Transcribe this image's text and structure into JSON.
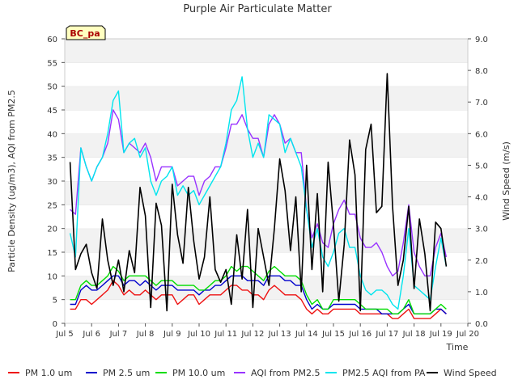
{
  "chart_data": {
    "type": "line",
    "title": "Purple Air Particulate Matter",
    "badge": "BC_pa",
    "xlabel": "Time",
    "ylabel_left": "Particle Density (ug/m3), AQI from PM2.5",
    "ylabel_right": "Wind Speed (m/s)",
    "x_ticks": [
      "Jul 5",
      "Jul 6",
      "Jul 7",
      "Jul 8",
      "Jul 9",
      "Jul 10",
      "Jul 11",
      "Jul 12",
      "Jul 13",
      "Jul 14",
      "Jul 15",
      "Jul 16",
      "Jul 17",
      "Jul 18",
      "Jul 19",
      "Jul 20"
    ],
    "x_range_days": [
      5,
      20
    ],
    "y_left_ticks": [
      "0",
      "5",
      "10",
      "15",
      "20",
      "25",
      "30",
      "35",
      "40",
      "45",
      "50",
      "55",
      "60"
    ],
    "y_left_range": [
      0,
      60
    ],
    "y_right_ticks": [
      "0.0",
      "1.0",
      "2.0",
      "3.0",
      "4.0",
      "5.0",
      "6.0",
      "7.0",
      "8.0",
      "9.0"
    ],
    "y_right_range": [
      0,
      9
    ],
    "grid": "horizontal bands",
    "legend_position": "bottom",
    "x": [
      5.2,
      5.4,
      5.6,
      5.8,
      6.0,
      6.2,
      6.4,
      6.6,
      6.8,
      7.0,
      7.2,
      7.4,
      7.6,
      7.8,
      8.0,
      8.2,
      8.4,
      8.6,
      8.8,
      9.0,
      9.2,
      9.4,
      9.6,
      9.8,
      10.0,
      10.2,
      10.4,
      10.6,
      10.8,
      11.0,
      11.2,
      11.4,
      11.6,
      11.8,
      12.0,
      12.2,
      12.4,
      12.6,
      12.8,
      13.0,
      13.2,
      13.4,
      13.6,
      13.8,
      14.0,
      14.2,
      14.4,
      14.6,
      14.8,
      15.0,
      15.2,
      15.4,
      15.6,
      15.8,
      16.0,
      16.2,
      16.4,
      16.6,
      16.8,
      17.0,
      17.2,
      17.4,
      17.6,
      17.8,
      18.0,
      18.2,
      18.4,
      18.6,
      18.8,
      19.0,
      19.2
    ],
    "series": [
      {
        "name": "PM 1.0 um",
        "axis": "left",
        "color": "#ee1111",
        "values": [
          3,
          3,
          5,
          5,
          4,
          5,
          6,
          7,
          9,
          8,
          6,
          7,
          6,
          6,
          7,
          6,
          5,
          6,
          6,
          6,
          4,
          5,
          6,
          6,
          4,
          5,
          6,
          6,
          6,
          7,
          8,
          8,
          7,
          7,
          6,
          6,
          5,
          7,
          8,
          7,
          6,
          6,
          6,
          5,
          3,
          2,
          3,
          2,
          2,
          3,
          3,
          3,
          3,
          3,
          2,
          2,
          2,
          2,
          2,
          2,
          1,
          1,
          2,
          3,
          1,
          1,
          1,
          1,
          2,
          3,
          2
        ]
      },
      {
        "name": "PM 2.5 um",
        "axis": "left",
        "color": "#0000cc",
        "values": [
          4,
          4,
          7,
          8,
          7,
          7,
          8,
          9,
          10,
          10,
          8,
          9,
          9,
          8,
          9,
          8,
          7,
          8,
          8,
          8,
          7,
          7,
          7,
          7,
          6,
          7,
          7,
          8,
          8,
          9,
          10,
          10,
          10,
          9,
          9,
          9,
          8,
          10,
          10,
          10,
          9,
          9,
          8,
          8,
          5,
          3,
          4,
          3,
          3,
          4,
          4,
          4,
          4,
          4,
          3,
          3,
          3,
          3,
          2,
          2,
          2,
          2,
          3,
          4,
          2,
          2,
          2,
          2,
          3,
          3,
          2
        ]
      },
      {
        "name": "PM 10.0 um",
        "axis": "left",
        "color": "#00dd00",
        "values": [
          5,
          5,
          8,
          9,
          8,
          8,
          9,
          10,
          12,
          11,
          9,
          10,
          10,
          10,
          10,
          9,
          8,
          9,
          9,
          9,
          8,
          8,
          8,
          8,
          7,
          7,
          8,
          9,
          9,
          10,
          12,
          11,
          12,
          12,
          11,
          10,
          9,
          11,
          12,
          11,
          10,
          10,
          10,
          9,
          6,
          4,
          5,
          3,
          3,
          5,
          5,
          5,
          5,
          5,
          4,
          3,
          3,
          3,
          3,
          3,
          2,
          2,
          3,
          5,
          2,
          2,
          2,
          2,
          3,
          4,
          3
        ]
      },
      {
        "name": "AQI from PM2.5",
        "axis": "left",
        "color": "#9933ff",
        "values": [
          24,
          23,
          37,
          33,
          30,
          33,
          35,
          38,
          45,
          43,
          36,
          38,
          37,
          36,
          38,
          35,
          30,
          33,
          33,
          33,
          29,
          30,
          31,
          31,
          27,
          30,
          31,
          33,
          33,
          37,
          42,
          42,
          44,
          41,
          39,
          39,
          35,
          42,
          44,
          42,
          38,
          39,
          36,
          36,
          24,
          18,
          21,
          17,
          16,
          21,
          24,
          26,
          23,
          23,
          18,
          16,
          16,
          17,
          15,
          12,
          10,
          11,
          17,
          25,
          15,
          12,
          10,
          10,
          16,
          19,
          14
        ]
      },
      {
        "name": "PM2.5 AQI from PA",
        "axis": "left",
        "color": "#00e5ee",
        "values": [
          19,
          14,
          37,
          33,
          30,
          33,
          35,
          40,
          47,
          49,
          36,
          38,
          39,
          35,
          37,
          30,
          27,
          30,
          31,
          33,
          27,
          29,
          27,
          28,
          25,
          27,
          29,
          31,
          33,
          38,
          45,
          47,
          52,
          41,
          35,
          38,
          35,
          44,
          43,
          42,
          36,
          39,
          36,
          33,
          24,
          16,
          20,
          14,
          12,
          15,
          19,
          20,
          16,
          16,
          10,
          7,
          6,
          7,
          7,
          6,
          4,
          3,
          10,
          20,
          8,
          7,
          6,
          5,
          12,
          18,
          12
        ]
      },
      {
        "name": "Wind Speed",
        "axis": "right",
        "color": "#000000",
        "values": [
          5.1,
          1.7,
          2.2,
          2.5,
          1.6,
          1.1,
          3.3,
          2.0,
          1.2,
          2.0,
          1.0,
          2.3,
          1.6,
          4.3,
          3.4,
          0.5,
          3.8,
          3.1,
          0.4,
          4.4,
          2.8,
          1.9,
          4.3,
          2.6,
          1.4,
          2.1,
          4.0,
          1.7,
          1.3,
          1.7,
          0.6,
          2.8,
          1.4,
          3.6,
          0.5,
          3.0,
          2.1,
          1.2,
          3.0,
          5.2,
          4.2,
          2.3,
          4.0,
          1.0,
          5.0,
          1.7,
          4.1,
          1.0,
          5.1,
          3.1,
          0.7,
          2.5,
          5.8,
          4.7,
          0.4,
          5.5,
          6.3,
          3.5,
          3.7,
          7.9,
          3.7,
          1.2,
          2.0,
          3.7,
          1.1,
          3.3,
          2.2,
          0.4,
          3.2,
          3.0,
          1.8
        ]
      }
    ]
  }
}
